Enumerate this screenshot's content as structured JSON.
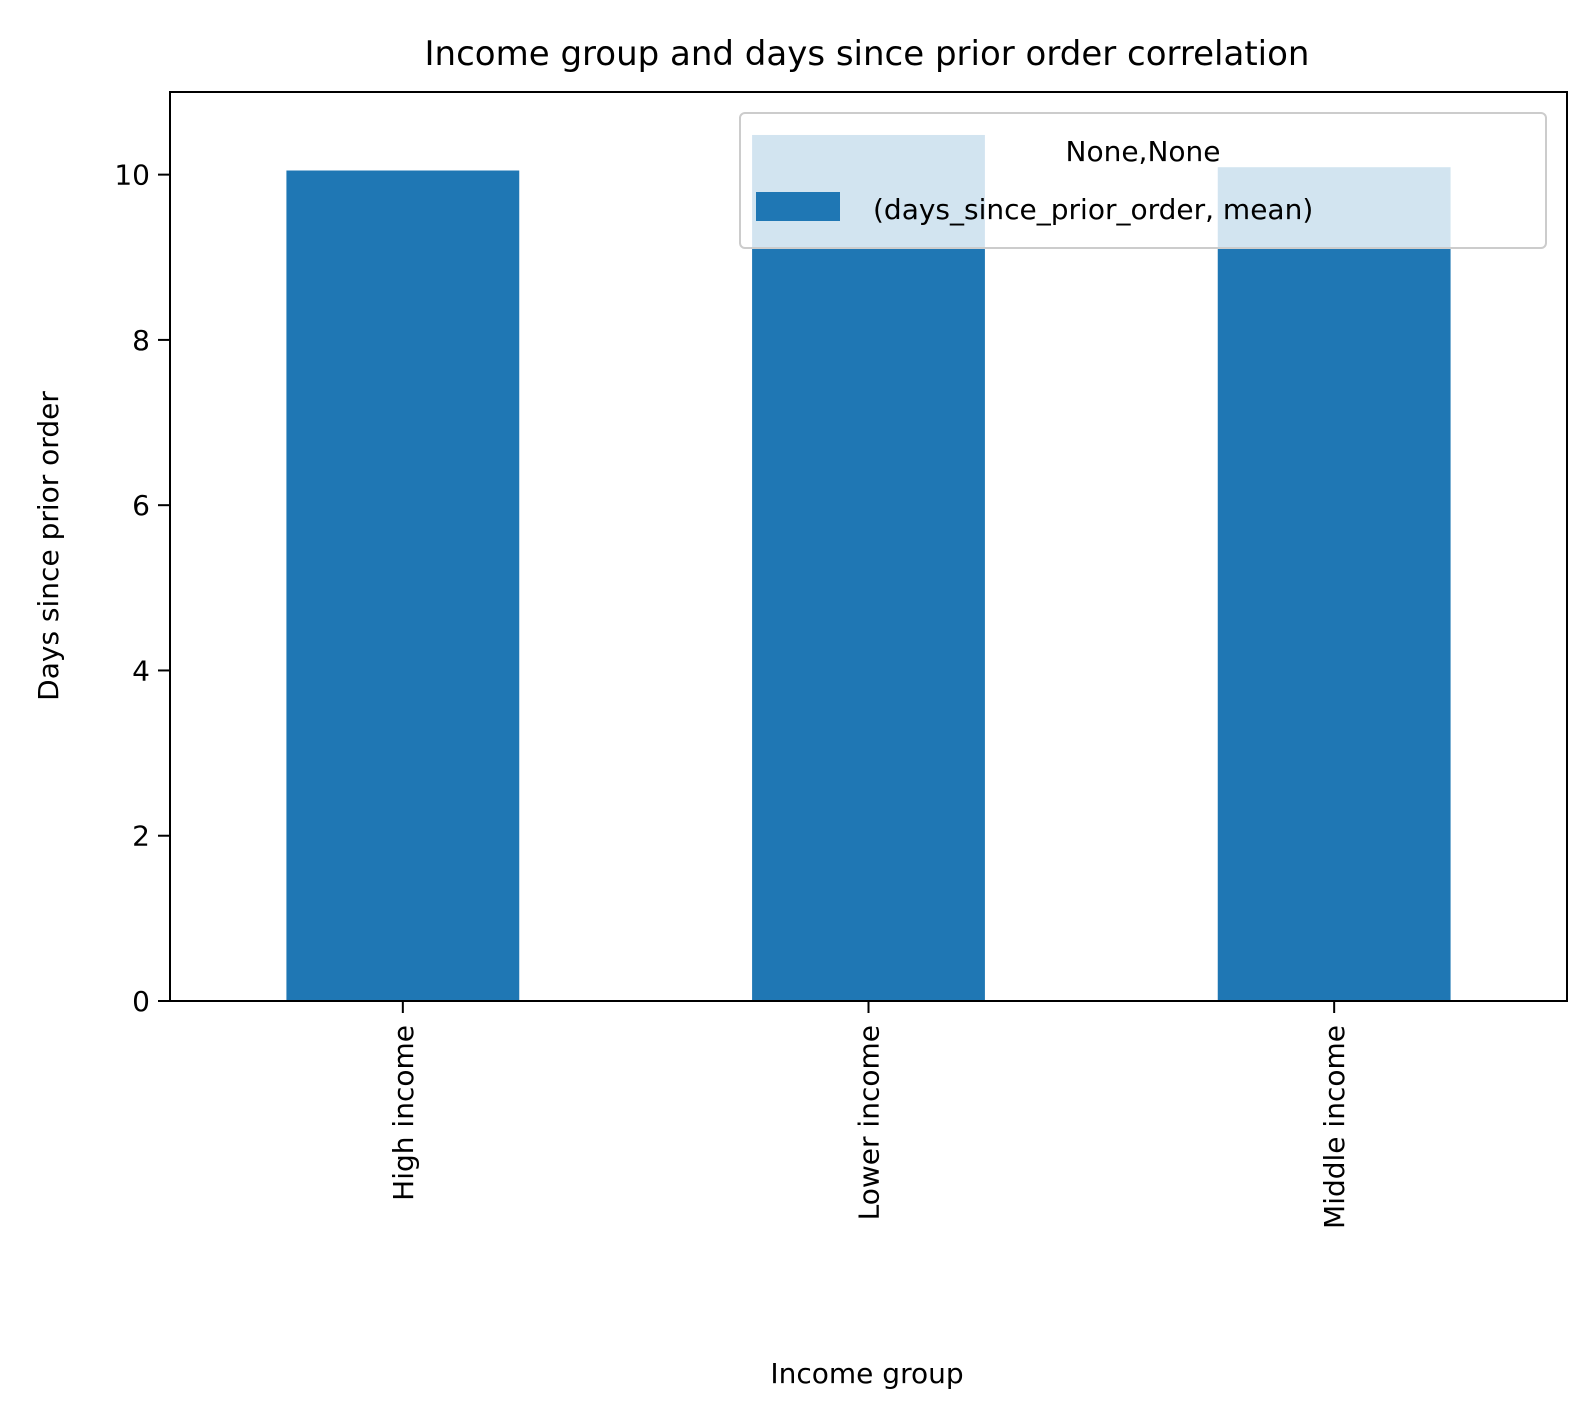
{
  "chart_data": {
    "type": "bar",
    "title": "Income group and days since prior order correlation",
    "xlabel": "Income group",
    "ylabel": "Days since prior order",
    "categories": [
      "High income",
      "Lower income",
      "Middle income"
    ],
    "series": [
      {
        "name": "(days_since_prior_order, mean)",
        "values": [
          10.05,
          10.48,
          10.09
        ]
      }
    ],
    "ylim": [
      0,
      11
    ],
    "yticks": [
      0,
      2,
      4,
      6,
      8,
      10
    ],
    "legend": {
      "title": "None,None",
      "placement": "top-right"
    },
    "grid": false,
    "colors": {
      "bar": "#1f77b4"
    }
  }
}
